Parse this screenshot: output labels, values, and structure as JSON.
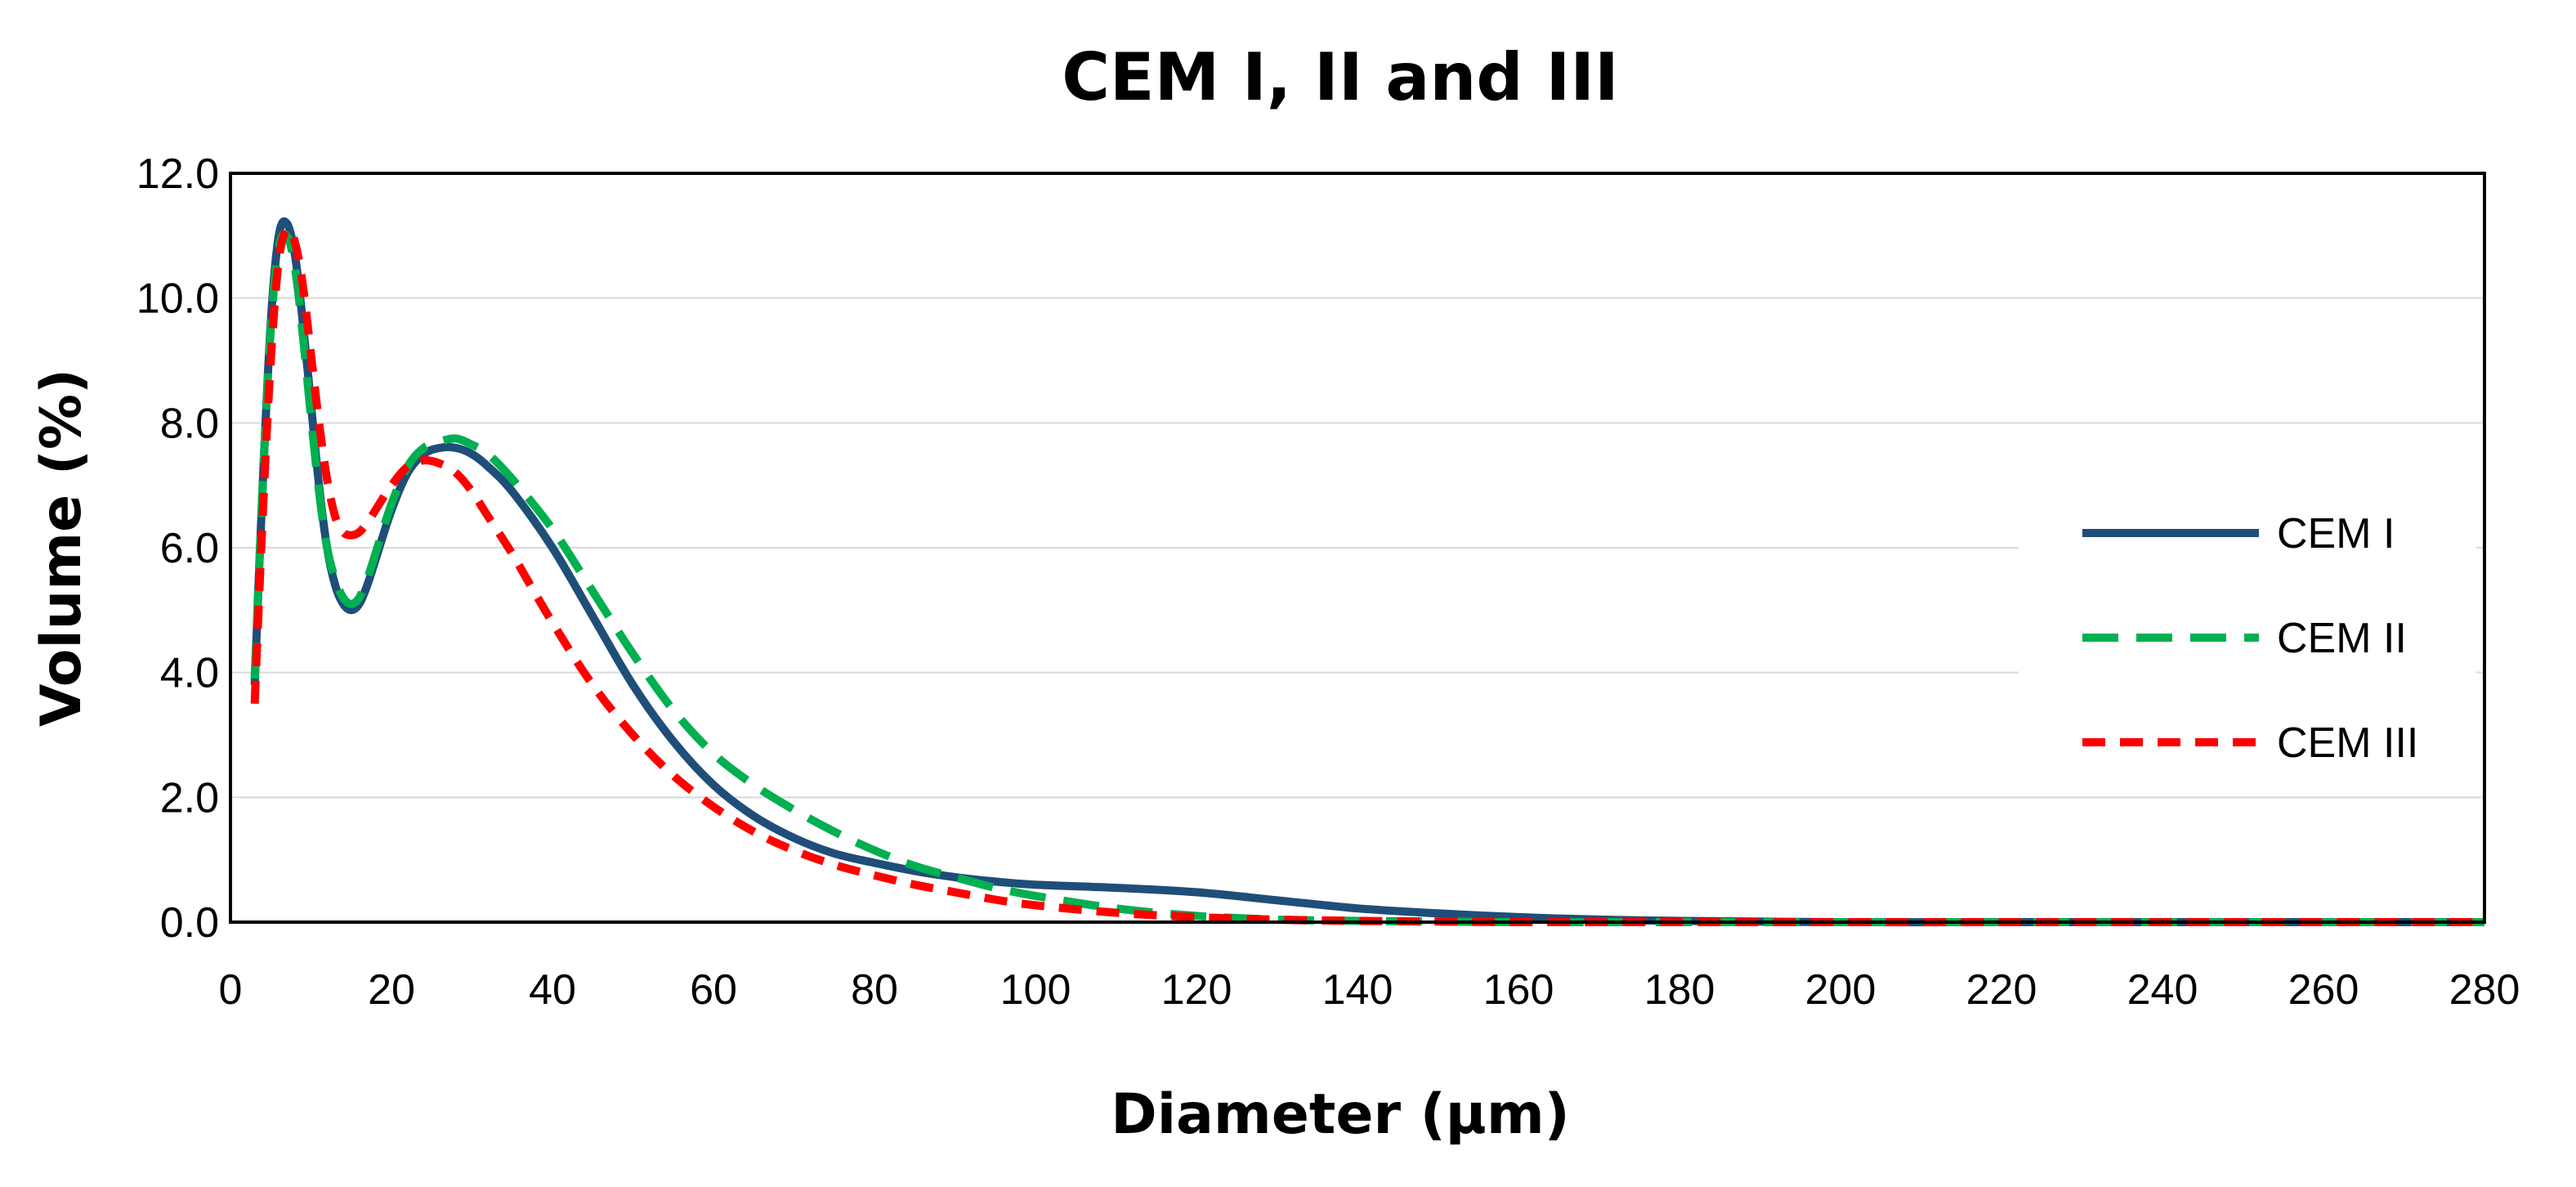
{
  "chart_data": {
    "type": "line",
    "title": "CEM I, II and III",
    "xlabel": "Diameter (µm)",
    "ylabel": "Volume (%)",
    "xlim": [
      0,
      280
    ],
    "ylim": [
      0,
      12
    ],
    "x_ticks": [
      0,
      20,
      40,
      60,
      80,
      100,
      120,
      140,
      160,
      180,
      200,
      220,
      240,
      260,
      280
    ],
    "y_ticks": [
      "0.0",
      "2.0",
      "4.0",
      "6.0",
      "8.0",
      "10.0",
      "12.0"
    ],
    "grid": true,
    "legend_position": "right",
    "series": [
      {
        "name": "CEM I",
        "color": "#1f4e79",
        "style": "solid",
        "x": [
          3,
          4,
          5,
          6,
          7,
          8,
          9,
          10,
          11,
          12,
          13,
          14,
          15,
          16,
          17,
          18,
          20,
          22,
          24,
          26,
          28,
          30,
          32,
          35,
          40,
          45,
          50,
          55,
          60,
          65,
          70,
          75,
          80,
          85,
          90,
          95,
          100,
          110,
          120,
          130,
          140,
          150,
          160,
          170,
          180,
          200,
          220,
          240,
          260,
          280
        ],
        "y": [
          3.8,
          7.0,
          9.6,
          11.0,
          11.2,
          10.7,
          9.6,
          8.3,
          7.0,
          6.0,
          5.4,
          5.1,
          5.0,
          5.1,
          5.4,
          5.8,
          6.6,
          7.2,
          7.5,
          7.6,
          7.6,
          7.5,
          7.3,
          6.9,
          6.0,
          4.9,
          3.8,
          2.9,
          2.2,
          1.7,
          1.35,
          1.1,
          0.95,
          0.82,
          0.72,
          0.65,
          0.6,
          0.55,
          0.48,
          0.35,
          0.22,
          0.14,
          0.08,
          0.04,
          0.02,
          0.0,
          0.0,
          0.0,
          0.0,
          0.0
        ]
      },
      {
        "name": "CEM II",
        "color": "#00b050",
        "style": "long-dash",
        "x": [
          3,
          4,
          5,
          6,
          7,
          8,
          9,
          10,
          11,
          12,
          13,
          14,
          15,
          16,
          17,
          18,
          20,
          22,
          24,
          26,
          28,
          30,
          32,
          35,
          40,
          45,
          50,
          55,
          60,
          65,
          70,
          75,
          80,
          85,
          90,
          95,
          100,
          110,
          120,
          130,
          140,
          150,
          160,
          180,
          200,
          220,
          240,
          260,
          280
        ],
        "y": [
          3.9,
          7.0,
          9.5,
          10.8,
          11.0,
          10.5,
          9.4,
          8.1,
          6.9,
          6.0,
          5.5,
          5.2,
          5.1,
          5.2,
          5.5,
          5.9,
          6.7,
          7.3,
          7.6,
          7.7,
          7.75,
          7.65,
          7.5,
          7.1,
          6.3,
          5.3,
          4.3,
          3.4,
          2.7,
          2.2,
          1.8,
          1.45,
          1.15,
          0.9,
          0.72,
          0.55,
          0.42,
          0.22,
          0.1,
          0.04,
          0.02,
          0.01,
          0.0,
          0.0,
          0.0,
          0.0,
          0.0,
          0.0,
          0.0
        ]
      },
      {
        "name": "CEM III",
        "color": "#ff0000",
        "style": "short-dash",
        "x": [
          3,
          4,
          5,
          6,
          7,
          8,
          9,
          10,
          11,
          12,
          13,
          14,
          15,
          16,
          17,
          18,
          20,
          22,
          24,
          26,
          28,
          30,
          32,
          35,
          40,
          45,
          50,
          55,
          60,
          65,
          70,
          75,
          80,
          85,
          90,
          95,
          100,
          110,
          120,
          130,
          140,
          150,
          160,
          180,
          200,
          220,
          240,
          260,
          280
        ],
        "y": [
          3.5,
          6.5,
          9.0,
          10.6,
          11.1,
          10.9,
          10.2,
          9.1,
          8.0,
          7.1,
          6.5,
          6.25,
          6.2,
          6.25,
          6.4,
          6.6,
          7.0,
          7.3,
          7.4,
          7.35,
          7.2,
          6.9,
          6.5,
          5.9,
          4.8,
          3.8,
          3.0,
          2.35,
          1.85,
          1.45,
          1.15,
          0.92,
          0.75,
          0.6,
          0.48,
          0.36,
          0.27,
          0.15,
          0.08,
          0.04,
          0.02,
          0.01,
          0.0,
          0.0,
          0.0,
          0.0,
          0.0,
          0.0,
          0.0
        ]
      }
    ]
  }
}
